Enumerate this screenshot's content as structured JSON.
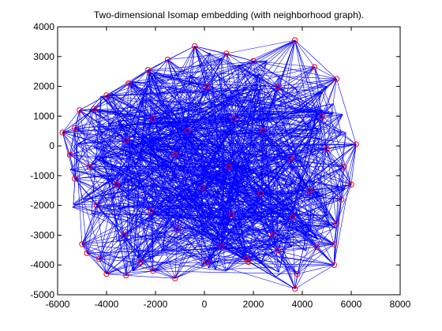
{
  "chart_data": {
    "type": "scatter",
    "title": "Two-dimensional Isomap embedding (with neighborhood graph).",
    "xlabel": "",
    "ylabel": "",
    "xlim": [
      -6000,
      8000
    ],
    "ylim": [
      -5000,
      4000
    ],
    "xticks": [
      -6000,
      -4000,
      -2000,
      0,
      2000,
      4000,
      6000,
      8000
    ],
    "yticks": [
      -5000,
      -4000,
      -3000,
      -2000,
      -1000,
      0,
      1000,
      2000,
      3000,
      4000
    ],
    "grid": false,
    "legend": "none",
    "colors": {
      "edges": "#0000ff",
      "markers": "#ff0000",
      "axes": "#000000",
      "background": "#ffffff"
    },
    "marker": "circle",
    "edge_style": "neighborhood-graph",
    "points": [
      {
        "x": 3700,
        "y": 3550
      },
      {
        "x": -400,
        "y": 3350
      },
      {
        "x": 900,
        "y": 3100
      },
      {
        "x": -1500,
        "y": 2900
      },
      {
        "x": 2000,
        "y": 2850
      },
      {
        "x": 4500,
        "y": 2650
      },
      {
        "x": -2300,
        "y": 2550
      },
      {
        "x": -3100,
        "y": 2100
      },
      {
        "x": 5400,
        "y": 2250
      },
      {
        "x": -4000,
        "y": 1700
      },
      {
        "x": 100,
        "y": 2000
      },
      {
        "x": 3000,
        "y": 2000
      },
      {
        "x": -5100,
        "y": 1200
      },
      {
        "x": -4500,
        "y": 1250
      },
      {
        "x": -2100,
        "y": 900
      },
      {
        "x": 1200,
        "y": 900
      },
      {
        "x": 4800,
        "y": 1000
      },
      {
        "x": -5800,
        "y": 450
      },
      {
        "x": -5300,
        "y": 600
      },
      {
        "x": -3200,
        "y": 200
      },
      {
        "x": -700,
        "y": 500
      },
      {
        "x": 2400,
        "y": 500
      },
      {
        "x": 6200,
        "y": 50
      },
      {
        "x": 5000,
        "y": -100
      },
      {
        "x": -5500,
        "y": -300
      },
      {
        "x": -4700,
        "y": -700
      },
      {
        "x": -1200,
        "y": -300
      },
      {
        "x": 1000,
        "y": -700
      },
      {
        "x": 3500,
        "y": -400
      },
      {
        "x": 5700,
        "y": -700
      },
      {
        "x": -5300,
        "y": -1100
      },
      {
        "x": -3600,
        "y": -1300
      },
      {
        "x": -100,
        "y": -1400
      },
      {
        "x": 2300,
        "y": -1600
      },
      {
        "x": 4300,
        "y": -1500
      },
      {
        "x": 6000,
        "y": -1300
      },
      {
        "x": -4400,
        "y": -2000
      },
      {
        "x": -2200,
        "y": -2200
      },
      {
        "x": 1100,
        "y": -2300
      },
      {
        "x": 3600,
        "y": -2400
      },
      {
        "x": 5600,
        "y": -1800
      },
      {
        "x": -5000,
        "y": -3300
      },
      {
        "x": -3300,
        "y": -3000
      },
      {
        "x": -1100,
        "y": -2800
      },
      {
        "x": 700,
        "y": -3400
      },
      {
        "x": 2800,
        "y": -3000
      },
      {
        "x": 5400,
        "y": -2600
      },
      {
        "x": -4800,
        "y": -3600
      },
      {
        "x": -4300,
        "y": -3800
      },
      {
        "x": -2600,
        "y": -3900
      },
      {
        "x": 100,
        "y": -3900
      },
      {
        "x": 1800,
        "y": -3900
      },
      {
        "x": 3000,
        "y": -3500
      },
      {
        "x": 4600,
        "y": -3400
      },
      {
        "x": 5300,
        "y": -3300
      },
      {
        "x": -4000,
        "y": -4300
      },
      {
        "x": -3200,
        "y": -4350
      },
      {
        "x": -2100,
        "y": -4200
      },
      {
        "x": -1200,
        "y": -4450
      },
      {
        "x": 1700,
        "y": -3800
      },
      {
        "x": 3800,
        "y": -4300
      },
      {
        "x": 5300,
        "y": -4000
      },
      {
        "x": 3700,
        "y": -4800
      }
    ]
  }
}
